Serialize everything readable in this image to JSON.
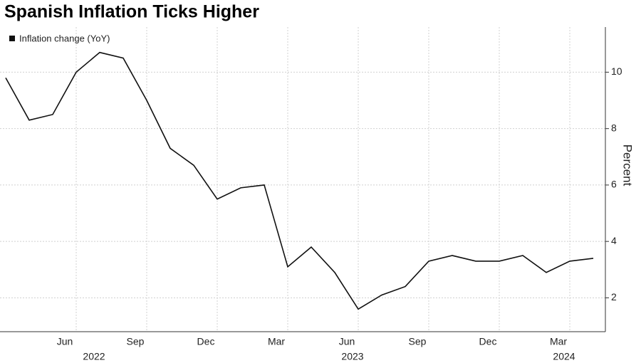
{
  "chart_data": {
    "type": "line",
    "title": "Spanish Inflation Ticks Higher",
    "y_label": "Percent",
    "categories": [
      null,
      null,
      null,
      "Jun",
      null,
      null,
      "Sep",
      null,
      null,
      "Dec",
      null,
      null,
      "Mar",
      null,
      null,
      "Jun",
      null,
      null,
      "Sep",
      null,
      null,
      "Dec",
      null,
      null,
      "Mar",
      null
    ],
    "category_years": [
      null,
      null,
      null,
      null,
      "2022",
      null,
      null,
      null,
      null,
      null,
      null,
      null,
      null,
      null,
      null,
      "2023",
      null,
      null,
      null,
      null,
      null,
      null,
      null,
      null,
      "2024",
      null
    ],
    "series": [
      {
        "name": "Inflation change (YoY)",
        "color": "#111111",
        "values": [
          9.8,
          8.3,
          8.5,
          10.0,
          10.7,
          10.5,
          9.0,
          7.3,
          6.7,
          5.5,
          5.9,
          6.0,
          3.1,
          3.8,
          2.9,
          1.6,
          2.1,
          2.4,
          3.3,
          3.5,
          3.3,
          3.3,
          3.5,
          2.9,
          3.3,
          3.4
        ]
      }
    ],
    "ylim": [
      0.8,
      11.6
    ],
    "yticks": [
      2,
      4,
      6,
      8,
      10
    ],
    "grid": true,
    "legend": "top-left",
    "y_axis_side": "right"
  }
}
